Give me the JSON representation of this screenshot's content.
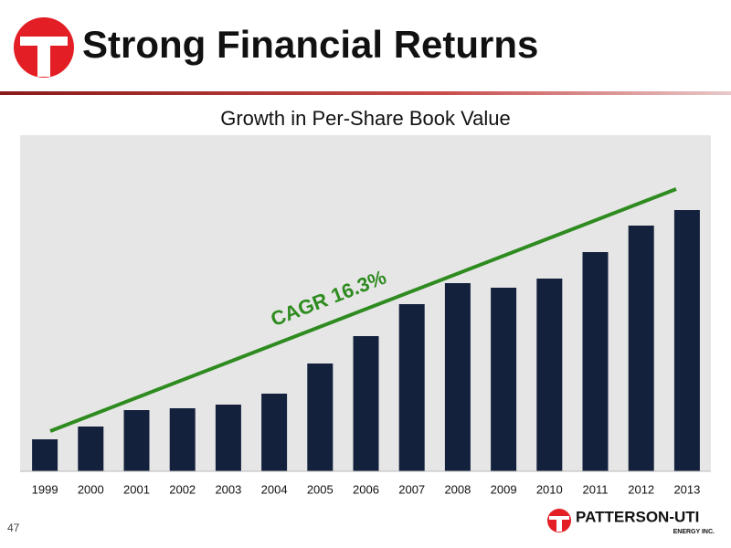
{
  "header": {
    "title": "Strong Financial Returns"
  },
  "footer": {
    "page": "47",
    "logo": "PATTERSON-UTI",
    "logo_sub": "ENERGY INC."
  },
  "chart_data": {
    "type": "bar",
    "title": "Growth in Per-Share Book Value",
    "categories": [
      "1999",
      "2000",
      "2001",
      "2002",
      "2003",
      "2004",
      "2005",
      "2006",
      "2007",
      "2008",
      "2009",
      "2010",
      "2011",
      "2012",
      "2013"
    ],
    "values": [
      35,
      49,
      67,
      69,
      73,
      85,
      118,
      148,
      183,
      206,
      201,
      211,
      240,
      269,
      286
    ],
    "color": "#14213d",
    "ylim": [
      0,
      368
    ],
    "annotations": [
      "CAGR 16.3%"
    ]
  }
}
